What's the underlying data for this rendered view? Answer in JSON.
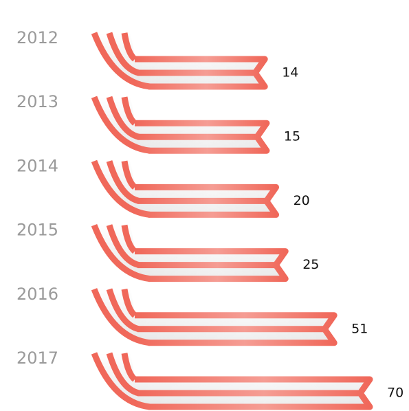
{
  "chart_data": {
    "type": "pictorial-bar",
    "categories": [
      "2012",
      "2013",
      "2014",
      "2015",
      "2016",
      "2017"
    ],
    "values": [
      14,
      15,
      20,
      25,
      51,
      70
    ],
    "color": "#f0685a"
  }
}
